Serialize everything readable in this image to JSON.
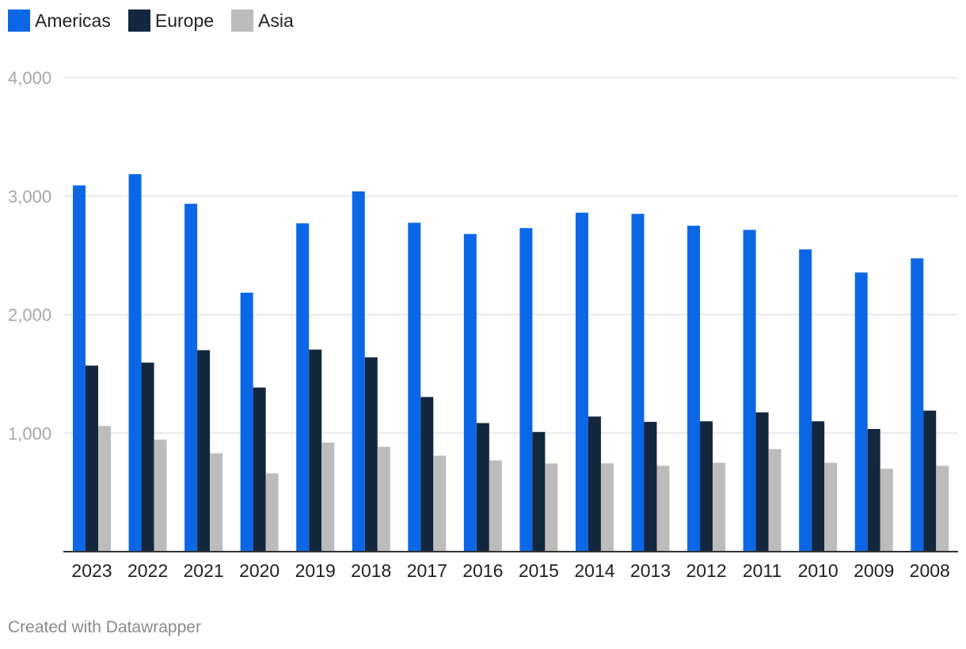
{
  "chart_data": {
    "type": "bar",
    "categories": [
      "2023",
      "2022",
      "2021",
      "2020",
      "2019",
      "2018",
      "2017",
      "2016",
      "2015",
      "2014",
      "2013",
      "2012",
      "2011",
      "2010",
      "2009",
      "2008"
    ],
    "series": [
      {
        "name": "Americas",
        "color": "#0b67e6",
        "values": [
          3090,
          3185,
          2935,
          2185,
          2770,
          3040,
          2775,
          2680,
          2730,
          2860,
          2850,
          2750,
          2715,
          2550,
          2355,
          2475
        ]
      },
      {
        "name": "Europe",
        "color": "#13273f",
        "values": [
          1570,
          1595,
          1700,
          1385,
          1705,
          1640,
          1305,
          1085,
          1010,
          1140,
          1095,
          1100,
          1175,
          1100,
          1035,
          1190
        ]
      },
      {
        "name": "Asia",
        "color": "#bcbcbc",
        "values": [
          1060,
          945,
          830,
          660,
          920,
          885,
          810,
          770,
          745,
          745,
          725,
          750,
          865,
          750,
          700,
          725
        ]
      }
    ],
    "y_ticks": [
      "4,000",
      "3,000",
      "2,000",
      "1,000"
    ],
    "y_tick_values": [
      4000,
      3000,
      2000,
      1000
    ],
    "ylim": [
      0,
      4000
    ],
    "grid": true,
    "legend_position": "top-left"
  },
  "footer": {
    "credit": "Created with Datawrapper"
  }
}
